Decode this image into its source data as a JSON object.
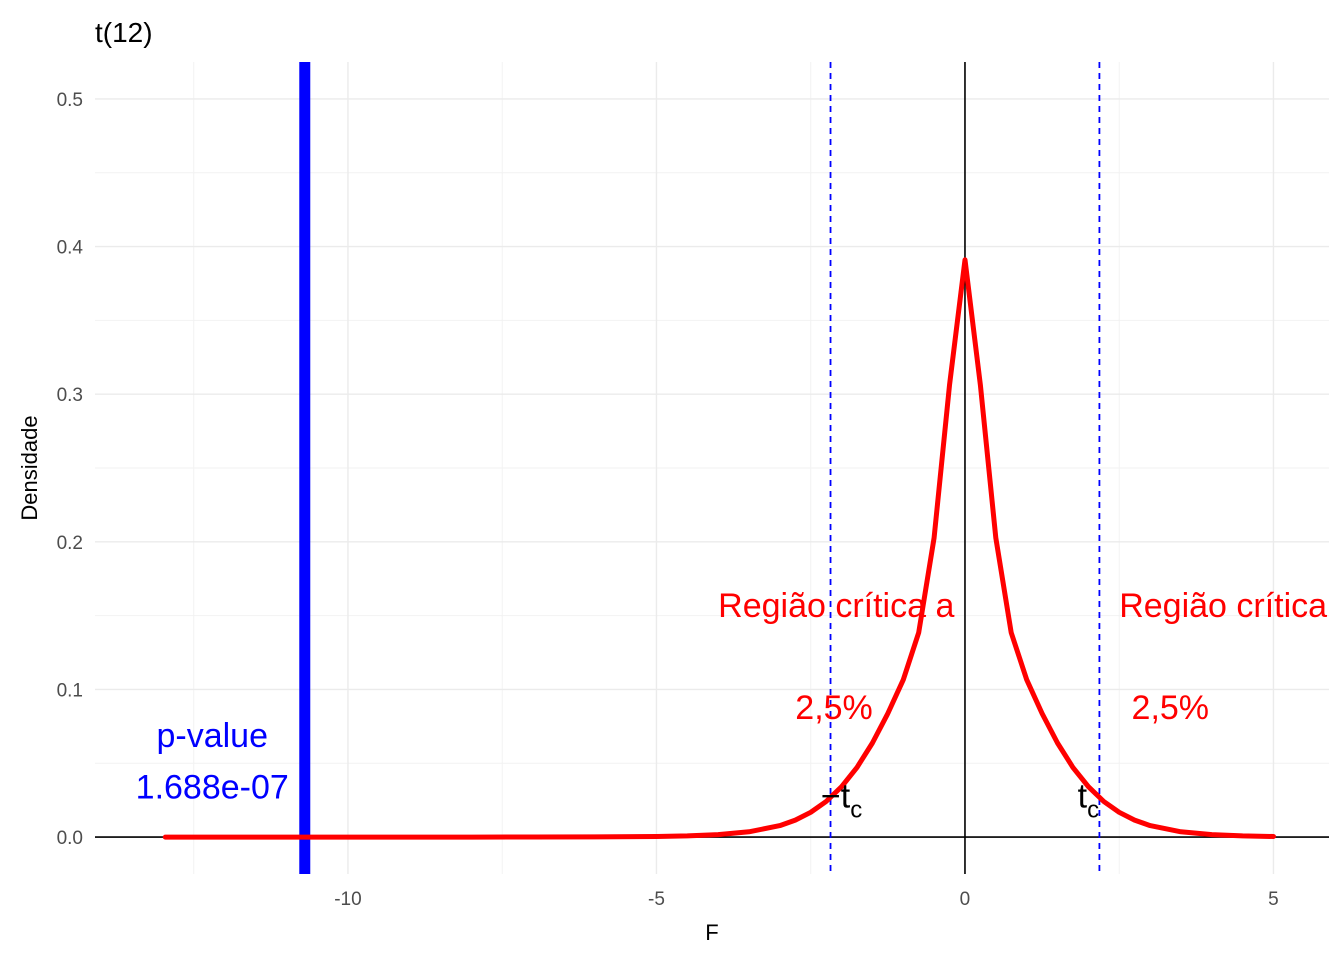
{
  "chart_data": {
    "type": "line",
    "title": "t(12)",
    "xlabel": "F",
    "ylabel": "Densidade",
    "xlim": [
      -14.1,
      5.9
    ],
    "ylim": [
      -0.025,
      0.525
    ],
    "x_ticks": [
      {
        "value": -10,
        "label": "-10"
      },
      {
        "value": -5,
        "label": "-5"
      },
      {
        "value": 0,
        "label": "0"
      },
      {
        "value": 5,
        "label": "5"
      }
    ],
    "y_ticks": [
      {
        "value": 0.0,
        "label": "0.0"
      },
      {
        "value": 0.1,
        "label": "0.1"
      },
      {
        "value": 0.2,
        "label": "0.2"
      },
      {
        "value": 0.3,
        "label": "0.3"
      },
      {
        "value": 0.4,
        "label": "0.4"
      },
      {
        "value": 0.5,
        "label": "0.5"
      }
    ],
    "grid": true,
    "series": [
      {
        "color": "#ff0000",
        "x": [
          -12.96,
          -12,
          -11,
          -10,
          -9,
          -8,
          -7,
          -6,
          -5,
          -4.5,
          -4,
          -3.5,
          -3,
          -2.75,
          -2.5,
          -2.25,
          -2,
          -1.75,
          -1.5,
          -1.25,
          -1,
          -0.75,
          -0.5,
          -0.25,
          0,
          0.25,
          0.5,
          0.75,
          1,
          1.25,
          1.5,
          1.75,
          2,
          2.25,
          2.5,
          2.75,
          3,
          3.5,
          4,
          4.5,
          5
        ],
        "y": [
          0,
          0,
          0,
          0,
          1e-05,
          2e-05,
          5e-05,
          0.00013,
          0.0004,
          0.0008,
          0.0017,
          0.0036,
          0.0078,
          0.0115,
          0.0168,
          0.0241,
          0.0341,
          0.0472,
          0.0637,
          0.0837,
          0.1066,
          0.1385,
          0.2027,
          0.3061,
          0.391,
          0.3061,
          0.2027,
          0.1385,
          0.1066,
          0.0837,
          0.0637,
          0.0472,
          0.0341,
          0.0241,
          0.0168,
          0.0115,
          0.0078,
          0.0036,
          0.0017,
          0.0008,
          0.0004
        ]
      }
    ],
    "reference_lines": {
      "vertical_zero": {
        "x": 0,
        "color": "#000000"
      },
      "horizontal_zero": {
        "y": 0,
        "color": "#000000"
      },
      "critical_values": [
        -2.179,
        2.179
      ],
      "critical_color": "#0000ff",
      "test_statistic": -10.7,
      "test_statistic_color": "#0000ff"
    },
    "annotations": {
      "region_left": {
        "text": "Região crítica a",
        "x": -4.0,
        "y": 0.149
      },
      "region_right": {
        "text": "Região crítica a",
        "x": 2.5,
        "y": 0.149
      },
      "pct_left": {
        "text": "2,5%",
        "x": -2.75,
        "y": 0.08
      },
      "pct_right": {
        "text": "2,5%",
        "x": 2.7,
        "y": 0.08
      },
      "tc_left": {
        "text": "−t",
        "sub": "c",
        "x": -2.0,
        "y": 0.02
      },
      "tc_right": {
        "text": "t",
        "sub": "c",
        "x": 2.0,
        "y": 0.02
      },
      "pvalue_label": {
        "text": "p-value",
        "x": -12.2,
        "y": 0.061
      },
      "pvalue_value": {
        "text": "1.688e-07",
        "x": -12.2,
        "y": 0.026
      }
    }
  }
}
